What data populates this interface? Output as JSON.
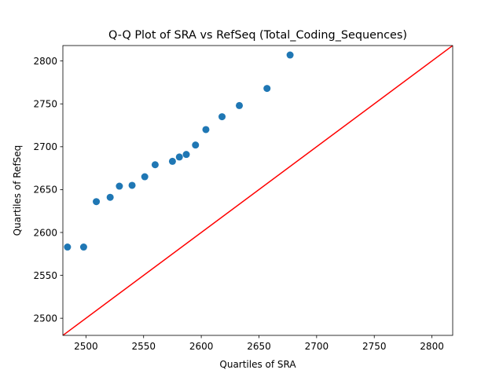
{
  "chart_data": {
    "type": "scatter",
    "title": "Q-Q Plot of SRA vs RefSeq (Total_Coding_Sequences)",
    "xlabel": "Quartiles of SRA",
    "ylabel": "Quartiles of RefSeq",
    "xlim": [
      2480,
      2818
    ],
    "ylim": [
      2480,
      2818
    ],
    "xticks": [
      2500,
      2550,
      2600,
      2650,
      2700,
      2750,
      2800
    ],
    "yticks": [
      2500,
      2550,
      2600,
      2650,
      2700,
      2750,
      2800
    ],
    "grid": false,
    "legend": "none",
    "colors": {
      "points": "#1f77b4",
      "reference_line": "#ff0000"
    },
    "series": [
      {
        "x": [
          2484,
          2498,
          2509,
          2521,
          2529,
          2540,
          2551,
          2560,
          2575,
          2581,
          2587,
          2595,
          2604,
          2618,
          2633,
          2657,
          2677
        ],
        "y": [
          2583,
          2583,
          2636,
          2641,
          2654,
          2655,
          2665,
          2679,
          2683,
          2688,
          2691,
          2702,
          2720,
          2735,
          2748,
          2768,
          2807
        ]
      }
    ],
    "reference_line": {
      "x": [
        2480,
        2818
      ],
      "y": [
        2480,
        2818
      ]
    }
  }
}
